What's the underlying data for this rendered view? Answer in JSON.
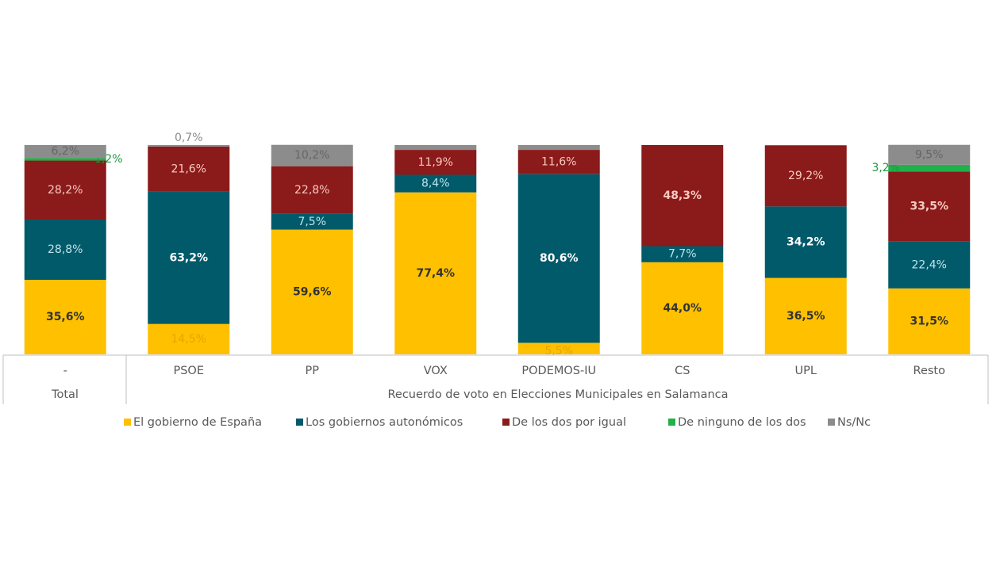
{
  "chart_data": {
    "type": "bar",
    "stacked": true,
    "percent": true,
    "ylim": [
      0,
      100
    ],
    "grid": false,
    "legend_position": "bottom",
    "categories": [
      "-",
      "PSOE",
      "PP",
      "VOX",
      "PODEMOS-IU",
      "CS",
      "UPL",
      "Resto"
    ],
    "group_labels": [
      {
        "label": "Total",
        "span": [
          0,
          0
        ]
      },
      {
        "label": "Recuerdo de voto en Elecciones Municipales en Salamanca",
        "span": [
          1,
          7
        ]
      }
    ],
    "series": [
      {
        "name": "El gobierno de España",
        "color": "#FFC000",
        "values": [
          35.6,
          14.5,
          59.6,
          77.4,
          5.5,
          44.0,
          36.5,
          31.5
        ],
        "labels": [
          "35,6%",
          "14,5%",
          "59,6%",
          "77,4%",
          "5,5%",
          "44,0%",
          "36,5%",
          "31,5%"
        ]
      },
      {
        "name": "Los gobiernos  autonómicos",
        "color": "#005A6A",
        "values": [
          28.8,
          63.2,
          7.5,
          8.4,
          80.6,
          7.7,
          34.2,
          22.4
        ],
        "labels": [
          "28,8%",
          "63,2%",
          "7,5%",
          "8,4%",
          "80,6%",
          "7,7%",
          "34,2%",
          "22,4%"
        ]
      },
      {
        "name": "De los dos por igual",
        "color": "#8B1A1A",
        "values": [
          28.2,
          21.6,
          22.8,
          11.9,
          11.6,
          48.3,
          29.2,
          33.5
        ],
        "labels": [
          "28,2%",
          "21,6%",
          "22,8%",
          "11,9%",
          "11,6%",
          "48,3%",
          "29,2%",
          "33,5%"
        ]
      },
      {
        "name": "De ninguno de los dos",
        "color": "#22B04A",
        "values": [
          1.2,
          0,
          0,
          0,
          0,
          0,
          0,
          3.2
        ],
        "labels": [
          "1,2%",
          "",
          "",
          "",
          "",
          "",
          "",
          "3,2%"
        ]
      },
      {
        "name": "Ns/Nc",
        "color": "#8C8C8C",
        "values": [
          6.2,
          0.7,
          10.2,
          2.3,
          2.3,
          0,
          0,
          9.5
        ],
        "labels": [
          "6,2%",
          "0,7%",
          "10,2%",
          "",
          "",
          "",
          "",
          "9,5%"
        ]
      }
    ]
  }
}
